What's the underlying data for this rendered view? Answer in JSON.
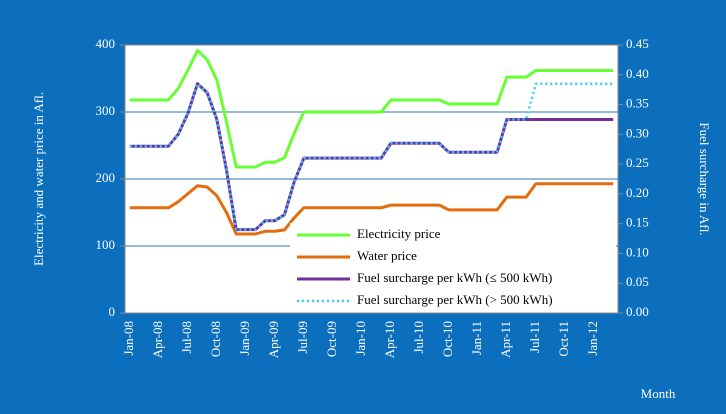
{
  "chart_data": {
    "type": "line",
    "ylabel": "Electricity and water price in Afl.",
    "y2label": "Fuel surcharge in Afl.",
    "xlabel": "Month",
    "categories": [
      "Jan-08",
      null,
      null,
      "Apr-08",
      null,
      null,
      "Jul-08",
      null,
      null,
      "Oct-08",
      null,
      null,
      "Jan-09",
      null,
      null,
      "Apr-09",
      null,
      null,
      "Jul-09",
      null,
      null,
      "Oct-09",
      null,
      null,
      "Jan-10",
      null,
      null,
      "Apr-10",
      null,
      null,
      "Jul-10",
      null,
      null,
      "Oct-10",
      null,
      null,
      "Jan-11",
      null,
      null,
      "Apr-11",
      null,
      null,
      "Jul-11",
      null,
      null,
      "Oct-11",
      null,
      null,
      "Jan-12",
      null,
      null
    ],
    "ylim": [
      0,
      400
    ],
    "yticks": [
      0,
      100,
      200,
      300,
      400
    ],
    "y2lim": [
      0,
      0.45
    ],
    "y2ticks": [
      {
        "value": 0,
        "label": "0.00"
      },
      0.05,
      {
        "value": 0.1,
        "label": "0.10"
      },
      0.15,
      {
        "value": 0.2,
        "label": "0.20"
      },
      0.25,
      {
        "value": 0.3,
        "label": "0.30"
      },
      0.35,
      {
        "value": 0.4,
        "label": "0.40"
      },
      0.45
    ],
    "grid": true,
    "legend": "lower right",
    "series": [
      {
        "name": "Electricity price",
        "color": "#66ff33",
        "values": [
          318,
          318,
          318,
          318,
          318,
          335,
          362,
          392,
          378,
          348,
          285,
          218,
          218,
          218,
          225,
          225,
          232,
          268,
          300,
          300,
          300,
          300,
          300,
          300,
          300,
          300,
          300,
          318,
          318,
          318,
          318,
          318,
          318,
          312,
          312,
          312,
          312,
          312,
          312,
          352,
          352,
          352,
          362,
          362,
          362,
          362,
          362,
          362,
          362,
          362,
          362
        ]
      },
      {
        "name": "Water price",
        "color": "#e46c0a",
        "values": [
          157,
          157,
          157,
          157,
          157,
          166,
          178,
          190,
          188,
          175,
          150,
          118,
          118,
          118,
          122,
          122,
          124,
          142,
          157,
          157,
          157,
          157,
          157,
          157,
          157,
          157,
          157,
          161,
          161,
          161,
          161,
          161,
          161,
          154,
          154,
          154,
          154,
          154,
          154,
          173,
          173,
          173,
          193,
          193,
          193,
          193,
          193,
          193,
          193,
          193,
          193
        ]
      },
      {
        "name": "Fuel surcharge per kWh (≤ 500 kWh)",
        "color": "#7030a0",
        "axis": "y2",
        "values": [
          0.28,
          0.28,
          0.28,
          0.28,
          0.28,
          0.3,
          0.335,
          0.385,
          0.37,
          0.325,
          0.24,
          0.14,
          0.14,
          0.14,
          0.155,
          0.155,
          0.165,
          0.22,
          0.26,
          0.26,
          0.26,
          0.26,
          0.26,
          0.26,
          0.26,
          0.26,
          0.26,
          0.285,
          0.285,
          0.285,
          0.285,
          0.285,
          0.285,
          0.27,
          0.27,
          0.27,
          0.27,
          0.27,
          0.27,
          0.325,
          0.325,
          0.325,
          0.325,
          0.325,
          0.325,
          0.325,
          0.325,
          0.325,
          0.325,
          0.325,
          0.325
        ]
      },
      {
        "name": "Fuel surcharge per kWh (> 500 kWh)",
        "color": "#33ccff",
        "axis": "y2",
        "line_style": "dotted",
        "values": [
          0.28,
          0.28,
          0.28,
          0.28,
          0.28,
          0.3,
          0.335,
          0.385,
          0.37,
          0.325,
          0.24,
          0.14,
          0.14,
          0.14,
          0.155,
          0.155,
          0.165,
          0.22,
          0.26,
          0.26,
          0.26,
          0.26,
          0.26,
          0.26,
          0.26,
          0.26,
          0.26,
          0.285,
          0.285,
          0.285,
          0.285,
          0.285,
          0.285,
          0.27,
          0.27,
          0.27,
          0.27,
          0.27,
          0.27,
          0.325,
          0.325,
          0.325,
          0.385,
          0.385,
          0.385,
          0.385,
          0.385,
          0.385,
          0.385,
          0.385,
          0.385
        ]
      }
    ]
  }
}
